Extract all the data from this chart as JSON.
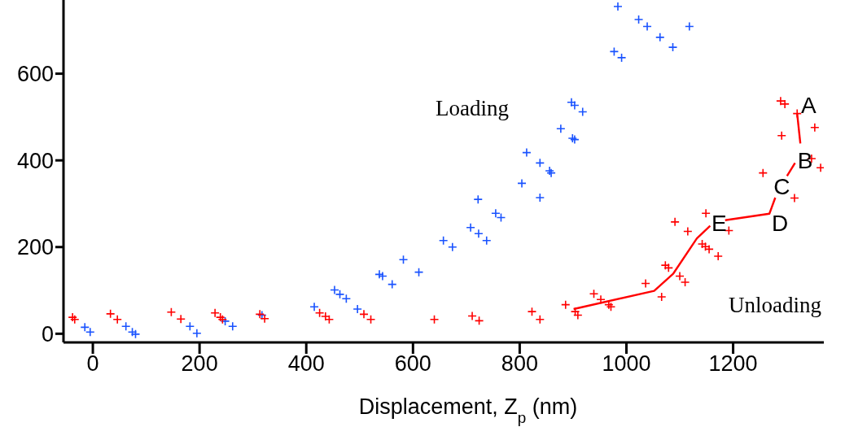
{
  "chart_data": {
    "type": "scatter",
    "xlabel": "Displacement, Z$_{p}$ (nm)",
    "xlim": [
      -55,
      1370
    ],
    "ylim": [
      -20,
      770
    ],
    "xticks": [
      0,
      200,
      400,
      600,
      800,
      1000,
      1200
    ],
    "yticks": [
      0,
      200,
      400,
      600
    ],
    "grid": false,
    "legend": false,
    "marker": "cross",
    "series": [
      {
        "name": "Loading",
        "color": "#1a53ff",
        "x": [
          -15,
          -5,
          62,
          74,
          80,
          182,
          195,
          248,
          262,
          317,
          415,
          453,
          463,
          475,
          496,
          537,
          543,
          561,
          582,
          611,
          657,
          674,
          708,
          723,
          738,
          722,
          755,
          765,
          804,
          838,
          813,
          838,
          856,
          859,
          877,
          899,
          903,
          897,
          903,
          918,
          977,
          991,
          1023,
          1039,
          1063,
          1087,
          1118,
          984
        ],
        "values": [
          15,
          4,
          17,
          4,
          -1,
          17,
          1,
          29,
          17,
          43,
          62,
          101,
          91,
          81,
          57,
          137,
          133,
          114,
          171,
          142,
          215,
          200,
          245,
          231,
          215,
          310,
          278,
          268,
          347,
          314,
          418,
          394,
          376,
          371,
          473,
          451,
          448,
          534,
          527,
          512,
          651,
          637,
          725,
          709,
          684,
          661,
          709,
          755
        ]
      },
      {
        "name": "Unloading",
        "color": "#ff0000",
        "x": [
          -38,
          -34,
          33,
          46,
          147,
          165,
          229,
          239,
          243,
          313,
          322,
          425,
          436,
          443,
          508,
          521,
          640,
          711,
          724,
          823,
          838,
          886,
          904,
          909,
          939,
          952,
          967,
          971,
          1036,
          1066,
          1073,
          1079,
          1100,
          1110,
          1091,
          1115,
          1142,
          1148,
          1155,
          1172,
          1149,
          1192,
          1289,
          1297,
          1320,
          1353,
          1291,
          1347,
          1364,
          1256,
          1315
        ],
        "values": [
          38,
          33,
          46,
          33,
          50,
          34,
          48,
          38,
          33,
          45,
          35,
          48,
          40,
          33,
          45,
          33,
          33,
          41,
          30,
          51,
          33,
          67,
          51,
          43,
          92,
          79,
          67,
          62,
          116,
          85,
          158,
          152,
          133,
          119,
          258,
          236,
          207,
          201,
          195,
          179,
          278,
          238,
          537,
          530,
          508,
          476,
          457,
          404,
          383,
          371,
          313
        ]
      },
      {
        "type": "line",
        "marker": "none",
        "color": "#ff0000",
        "x": [
          901,
          1052,
          1088,
          1132,
          1157
        ],
        "values": [
          57,
          99,
          139,
          220,
          249
        ]
      },
      {
        "type": "line",
        "marker": "none",
        "color": "#ff0000",
        "x": [
          1185,
          1268,
          1279
        ],
        "values": [
          262,
          277,
          314
        ]
      },
      {
        "type": "line",
        "marker": "none",
        "color": "#ff0000",
        "x": [
          1301,
          1316
        ],
        "values": [
          364,
          394
        ]
      },
      {
        "type": "line",
        "marker": "none",
        "color": "#ff0000",
        "x": [
          1326,
          1320
        ],
        "values": [
          439,
          508
        ]
      }
    ],
    "annotations": [
      {
        "text": "A",
        "x": 1320,
        "y": 508
      },
      {
        "text": "B",
        "x": 1326,
        "y": 439
      },
      {
        "text": "C",
        "x": 1279,
        "y": 314
      },
      {
        "text": "D",
        "x": 1268,
        "y": 277
      },
      {
        "text": "E",
        "x": 1157,
        "y": 249
      }
    ]
  }
}
